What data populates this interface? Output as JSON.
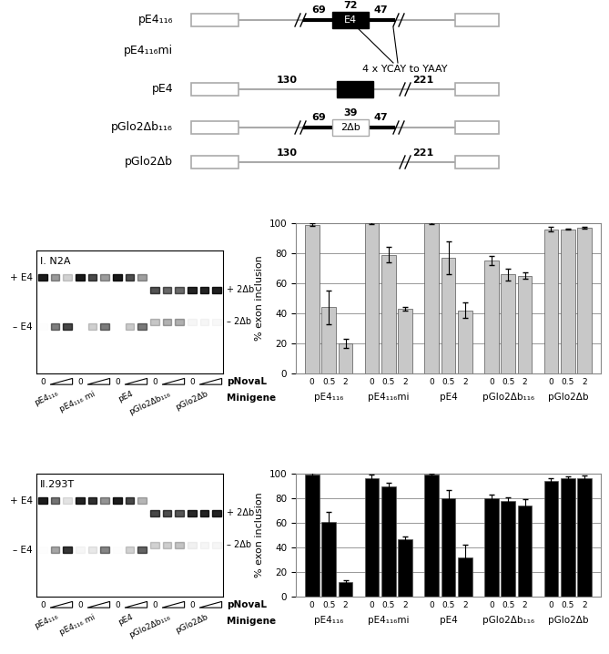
{
  "diagram": {
    "constructs": [
      {
        "name": "pE4₁₁₆",
        "exon": "E4",
        "color": "#000000",
        "labels": [
          69,
          72,
          47
        ]
      },
      {
        "name": "pE4₁₁₆mi",
        "note": "4 x YCAY to YAAY"
      },
      {
        "name": "pE4",
        "color": "#000000",
        "labels": [
          130,
          221
        ]
      },
      {
        "name": "pGlo2Δb₁₁₆",
        "exon": "2Δb",
        "color": "#ffffff",
        "labels": [
          69,
          39,
          47
        ]
      },
      {
        "name": "pGlo2Δb",
        "labels": [
          130,
          221
        ]
      }
    ]
  },
  "gels": [
    {
      "title": "I. N2A",
      "labels_left": [
        "+ E4",
        "– E4"
      ],
      "labels_right": [
        "+ 2Δb",
        "– 2Δb"
      ],
      "groups": [
        "pE4₁₁₆",
        "pE4₁₁₆ mi",
        "pE4",
        "pGlo2Δb₁₁₆",
        "pGlo2Δb"
      ],
      "lane_label": "0",
      "row_labels": [
        "pNovaL",
        "Minigene"
      ]
    },
    {
      "title": "II.293T",
      "labels_left": [
        "+ E4",
        "– E4"
      ],
      "labels_right": [
        "+ 2Δb",
        "– 2Δb"
      ],
      "groups": [
        "pE4₁₁₆",
        "pE4₁₁₆ mi",
        "pE4",
        "pGlo2Δb₁₁₆",
        "pGlo2Δb"
      ],
      "lane_label": "0",
      "row_labels": [
        "pNovaL",
        "Minigene"
      ]
    }
  ],
  "chart_data": [
    {
      "type": "bar",
      "ylabel": "% exon inclusion",
      "color": "#c8c8c8",
      "categories": [
        "pE4₁₁₆",
        "pE4₁₁₆mi",
        "pE4",
        "pGlo2Δb₁₁₆",
        "pGlo2Δb"
      ],
      "series": [
        {
          "name": "0",
          "values": [
            99,
            100,
            100,
            75,
            96
          ],
          "errors": [
            1,
            0.5,
            0.5,
            3,
            1.5
          ]
        },
        {
          "name": "0.5",
          "values": [
            44,
            79,
            77,
            66,
            96
          ],
          "errors": [
            11,
            5,
            11,
            4,
            0.5
          ]
        },
        {
          "name": "2",
          "values": [
            20,
            43,
            42,
            65,
            97
          ],
          "errors": [
            3,
            1,
            5,
            2,
            0.5
          ]
        }
      ],
      "ylim": [
        0,
        100
      ],
      "yticks": [
        0,
        20,
        40,
        60,
        80,
        100
      ],
      "grid": true
    },
    {
      "type": "bar",
      "ylabel": "% exon inclusion",
      "color": "#000000",
      "categories": [
        "pE4₁₁₆",
        "pE4₁₁₆mi",
        "pE4",
        "pGlo2Δb₁₁₆",
        "pGlo2Δb"
      ],
      "series": [
        {
          "name": "0",
          "values": [
            99,
            96,
            99,
            80,
            94
          ],
          "errors": [
            1.5,
            3,
            1,
            3,
            2
          ]
        },
        {
          "name": "0.5",
          "values": [
            61,
            90,
            80,
            78,
            96
          ],
          "errors": [
            8,
            2.5,
            7,
            3,
            2
          ]
        },
        {
          "name": "2",
          "values": [
            12,
            47,
            32,
            74,
            96
          ],
          "errors": [
            1.5,
            2,
            10,
            5,
            2.5
          ]
        }
      ],
      "ylim": [
        0,
        100
      ],
      "yticks": [
        0,
        20,
        40,
        60,
        80,
        100
      ],
      "grid": true
    }
  ]
}
